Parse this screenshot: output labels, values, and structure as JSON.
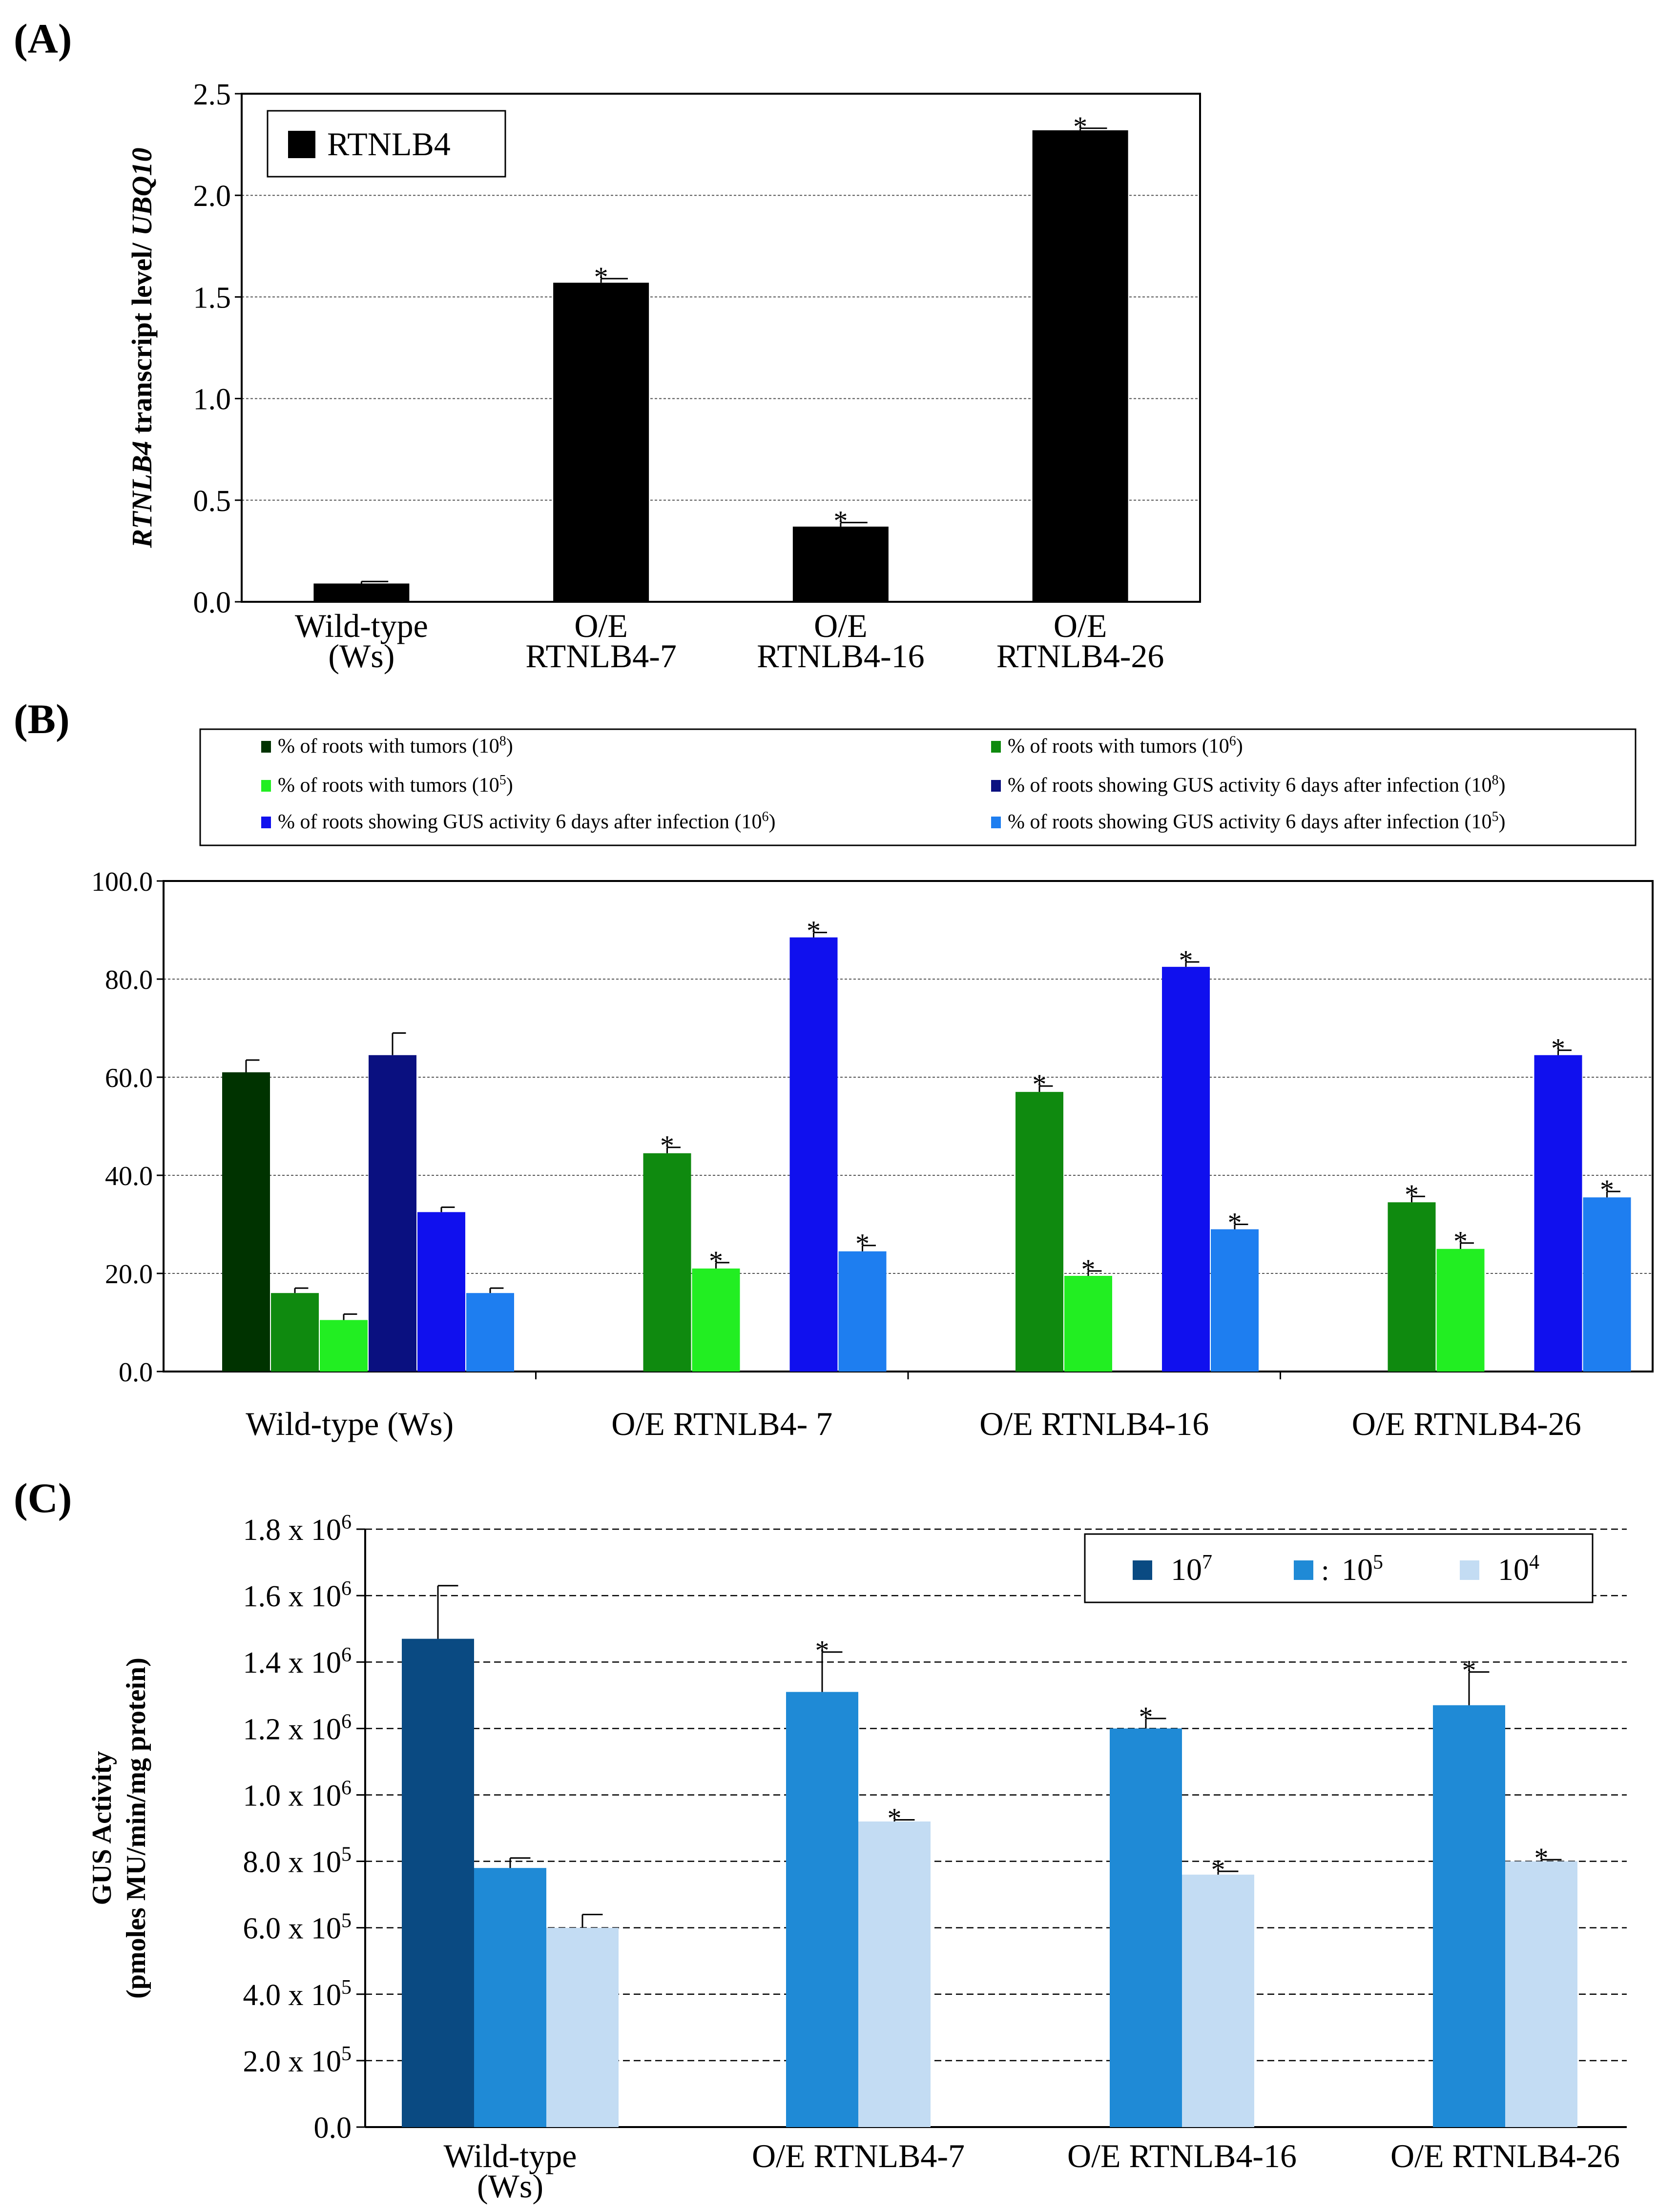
{
  "panels": {
    "a": {
      "label": "(A)"
    },
    "b": {
      "label": "(B)"
    },
    "c": {
      "label": "(C)"
    }
  },
  "colors": {
    "black": "#000000",
    "darkgreen": "#003300",
    "green": "#0f8a0f",
    "lightgreen": "#22ee22",
    "navy": "#0a1080",
    "blue": "#1010ee",
    "skyblue": "#1e7ef0",
    "c_dark": "#0a4a82",
    "c_mid": "#1f8ad6",
    "c_light": "#c3dcf3"
  },
  "chart_data": [
    {
      "id": "A",
      "type": "bar",
      "categories": [
        [
          "Wild-type",
          "(Ws)"
        ],
        [
          "O/E",
          "RTNLB4-7"
        ],
        [
          "O/E",
          "RTNLB4-16"
        ],
        [
          "O/E",
          "RTNLB4-26"
        ]
      ],
      "series": [
        {
          "name": "RTNLB4",
          "values": [
            0.09,
            1.57,
            0.37,
            2.32
          ],
          "errors": [
            0.01,
            0.02,
            0.02,
            0.01
          ],
          "significant": [
            false,
            true,
            true,
            true
          ],
          "color": "#000000"
        }
      ],
      "ylabel_parts": [
        {
          "text": "RTNLB4",
          "italic": true
        },
        {
          "text": " transcript level/ ",
          "italic": false
        },
        {
          "text": "UBQ10",
          "italic": true
        }
      ],
      "ylim": [
        0,
        2.5
      ],
      "yticks": [
        0,
        0.5,
        1.0,
        1.5,
        2.0,
        2.5
      ],
      "ytick_labels": [
        "0.0",
        "0.5",
        "1.0",
        "1.5",
        "2.0",
        "2.5"
      ],
      "grid": true,
      "legend": [
        "RTNLB4"
      ],
      "legend_position": "top-left"
    },
    {
      "id": "B",
      "type": "bar",
      "categories": [
        "Wild-type (Ws)",
        "O/E RTNLB4- 7",
        "O/E RTNLB4-16",
        "O/E RTNLB4-26"
      ],
      "series": [
        {
          "name": "% of roots with tumors (10",
          "sup": "8",
          "values": [
            61,
            null,
            null,
            null
          ],
          "errors": [
            2.5,
            null,
            null,
            null
          ],
          "significant": [
            false,
            false,
            false,
            false
          ],
          "color": "#003300"
        },
        {
          "name": "% of roots with tumors (10",
          "sup": "6",
          "values": [
            16,
            44.5,
            57,
            34.5
          ],
          "errors": [
            1,
            1.2,
            1.2,
            1.2
          ],
          "significant": [
            false,
            true,
            true,
            true
          ],
          "color": "#0f8a0f"
        },
        {
          "name": "% of roots with tumors (10",
          "sup": "5",
          "values": [
            10.5,
            21,
            19.5,
            25
          ],
          "errors": [
            1.2,
            1.2,
            1,
            1.2
          ],
          "significant": [
            false,
            true,
            true,
            true
          ],
          "color": "#22ee22"
        },
        {
          "name": "% of roots showing GUS activity 6 days after infection (10",
          "sup": "8",
          "values": [
            64.5,
            null,
            null,
            null
          ],
          "errors": [
            4.5,
            null,
            null,
            null
          ],
          "significant": [
            false,
            false,
            false,
            false
          ],
          "color": "#0a1080"
        },
        {
          "name": "% of roots showing GUS activity 6 days after infection (10",
          "sup": "6",
          "values": [
            32.5,
            88.5,
            82.5,
            64.5
          ],
          "errors": [
            1,
            1,
            1,
            1
          ],
          "significant": [
            false,
            true,
            true,
            true
          ],
          "color": "#1010ee"
        },
        {
          "name": "% of roots showing GUS activity 6 days after infection (10",
          "sup": "5",
          "values": [
            16,
            24.5,
            29,
            35.5
          ],
          "errors": [
            1,
            1.2,
            1,
            1.2
          ],
          "significant": [
            false,
            true,
            true,
            true
          ],
          "color": "#1e7ef0"
        }
      ],
      "ylim": [
        0,
        100
      ],
      "yticks": [
        0,
        20,
        40,
        60,
        80,
        100
      ],
      "ytick_labels": [
        "0.0",
        "20.0",
        "40.0",
        "60.0",
        "80.0",
        "100.0"
      ],
      "grid": true,
      "legend_position": "top"
    },
    {
      "id": "C",
      "type": "bar",
      "categories": [
        [
          "Wild-type",
          "(Ws)"
        ],
        [
          "O/E RTNLB4-7"
        ],
        [
          "O/E RTNLB4-16"
        ],
        [
          "O/E RTNLB4-26"
        ]
      ],
      "series": [
        {
          "name": "10",
          "sup": "7",
          "values": [
            1470000,
            null,
            null,
            null
          ],
          "errors": [
            160000,
            null,
            null,
            null
          ],
          "significant": [
            false,
            false,
            false,
            false
          ],
          "color": "#0a4a82"
        },
        {
          "name": "10",
          "sup": "5",
          "prefix": ":",
          "values": [
            780000,
            1310000,
            1200000,
            1270000
          ],
          "errors": [
            30000,
            120000,
            30000,
            100000
          ],
          "significant": [
            false,
            true,
            true,
            true
          ],
          "color": "#1f8ad6"
        },
        {
          "name": "10",
          "sup": "4",
          "values": [
            600000,
            920000,
            760000,
            800000
          ],
          "errors": [
            40000,
            5000,
            10000,
            5000
          ],
          "significant": [
            false,
            true,
            true,
            true
          ],
          "color": "#c3dcf3"
        }
      ],
      "ylabel": [
        "GUS  Activity",
        "(pmoles MU/min/mg  protein)"
      ],
      "ylim": [
        0,
        1800000
      ],
      "yticks": [
        0,
        200000,
        400000,
        600000,
        800000,
        1000000,
        1200000,
        1400000,
        1600000,
        1800000
      ],
      "ytick_labels": [
        {
          "m": "0.0",
          "e": ""
        },
        {
          "m": "2.0 x 10",
          "e": "5"
        },
        {
          "m": "4.0 x 10",
          "e": "5"
        },
        {
          "m": "6.0 x 10",
          "e": "5"
        },
        {
          "m": "8.0 x 10",
          "e": "5"
        },
        {
          "m": "1.0 x 10",
          "e": "6"
        },
        {
          "m": "1.2 x 10",
          "e": "6"
        },
        {
          "m": "1.4 x 10",
          "e": "6"
        },
        {
          "m": "1.6 x 10",
          "e": "6"
        },
        {
          "m": "1.8 x 10",
          "e": "6"
        }
      ],
      "grid": true,
      "legend_position": "top-right"
    }
  ]
}
